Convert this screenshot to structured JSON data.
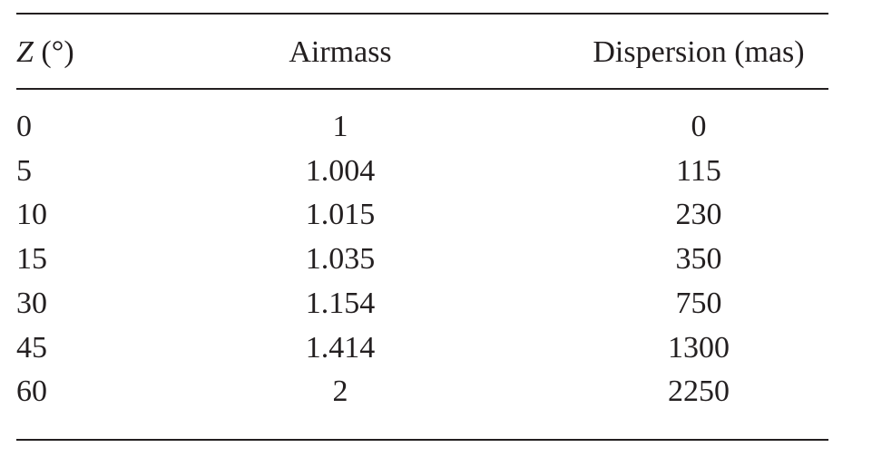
{
  "table": {
    "header": [
      "Z (°)",
      "Airmass",
      "Dispersion (mas)"
    ],
    "rows": [
      [
        "0",
        "1",
        "0"
      ],
      [
        "5",
        "1.004",
        "115"
      ],
      [
        "10",
        "1.015",
        "230"
      ],
      [
        "15",
        "1.035",
        "350"
      ],
      [
        "30",
        "1.154",
        "750"
      ],
      [
        "45",
        "1.414",
        "1300"
      ],
      [
        "60",
        "2",
        "2250"
      ]
    ]
  }
}
